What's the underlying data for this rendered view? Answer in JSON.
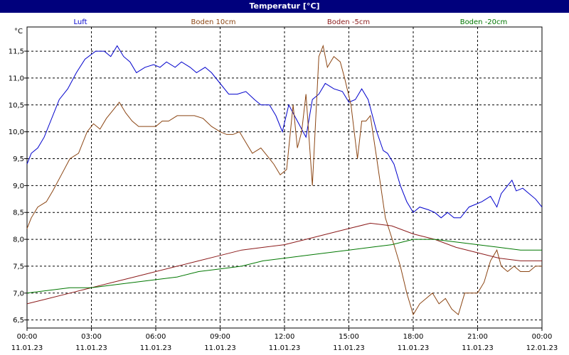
{
  "window": {
    "title": "Temperatur [°C]"
  },
  "chart_data": {
    "type": "line",
    "title": "Temperatur [°C]",
    "ylabel": "°C",
    "xlabel": "",
    "ylim": [
      6.35,
      11.95
    ],
    "xlim": [
      0,
      24
    ],
    "grid": true,
    "legend_placement": "top",
    "yticks": [
      6.5,
      7.0,
      7.5,
      8.0,
      8.5,
      9.0,
      9.5,
      10.0,
      10.5,
      11.0,
      11.5
    ],
    "ytick_labels": [
      "6,5",
      "7,0",
      "7,5",
      "8,0",
      "8,5",
      "9,0",
      "9,5",
      "10,0",
      "10,5",
      "11,0",
      "11,5"
    ],
    "xticks": [
      {
        "x": 0,
        "time": "00:00",
        "date": "11.01.23"
      },
      {
        "x": 3,
        "time": "03:00",
        "date": "11.01.23"
      },
      {
        "x": 6,
        "time": "06:00",
        "date": "11.01.23"
      },
      {
        "x": 9,
        "time": "09:00",
        "date": "11.01.23"
      },
      {
        "x": 12,
        "time": "12:00",
        "date": "11.01.23"
      },
      {
        "x": 15,
        "time": "15:00",
        "date": "11.01.23"
      },
      {
        "x": 18,
        "time": "18:00",
        "date": "11.01.23"
      },
      {
        "x": 21,
        "time": "21:00",
        "date": "11.01.23"
      },
      {
        "x": 24,
        "time": "00:00",
        "date": "12.01.23"
      }
    ],
    "series": [
      {
        "name": "Luft",
        "color": "#0000cc",
        "points": [
          [
            0,
            9.4
          ],
          [
            0.2,
            9.6
          ],
          [
            0.5,
            9.7
          ],
          [
            0.8,
            9.9
          ],
          [
            1.1,
            10.2
          ],
          [
            1.5,
            10.6
          ],
          [
            1.9,
            10.8
          ],
          [
            2.3,
            11.1
          ],
          [
            2.7,
            11.35
          ],
          [
            3.2,
            11.5
          ],
          [
            3.6,
            11.5
          ],
          [
            3.9,
            11.4
          ],
          [
            4.2,
            11.6
          ],
          [
            4.5,
            11.4
          ],
          [
            4.8,
            11.3
          ],
          [
            5.1,
            11.1
          ],
          [
            5.5,
            11.2
          ],
          [
            5.9,
            11.25
          ],
          [
            6.2,
            11.2
          ],
          [
            6.5,
            11.3
          ],
          [
            6.9,
            11.2
          ],
          [
            7.2,
            11.3
          ],
          [
            7.6,
            11.2
          ],
          [
            7.9,
            11.1
          ],
          [
            8.3,
            11.2
          ],
          [
            8.6,
            11.1
          ],
          [
            9.0,
            10.9
          ],
          [
            9.4,
            10.7
          ],
          [
            9.8,
            10.7
          ],
          [
            10.2,
            10.75
          ],
          [
            10.6,
            10.6
          ],
          [
            10.9,
            10.5
          ],
          [
            11.3,
            10.5
          ],
          [
            11.6,
            10.3
          ],
          [
            11.9,
            10.0
          ],
          [
            12.2,
            10.5
          ],
          [
            12.6,
            10.2
          ],
          [
            13.0,
            9.9
          ],
          [
            13.3,
            10.6
          ],
          [
            13.6,
            10.7
          ],
          [
            13.9,
            10.9
          ],
          [
            14.3,
            10.8
          ],
          [
            14.7,
            10.75
          ],
          [
            15.0,
            10.55
          ],
          [
            15.3,
            10.6
          ],
          [
            15.6,
            10.8
          ],
          [
            15.9,
            10.6
          ],
          [
            16.3,
            10.0
          ],
          [
            16.6,
            9.65
          ],
          [
            16.8,
            9.6
          ],
          [
            17.1,
            9.4
          ],
          [
            17.4,
            9.0
          ],
          [
            17.7,
            8.7
          ],
          [
            18.0,
            8.5
          ],
          [
            18.3,
            8.6
          ],
          [
            18.7,
            8.55
          ],
          [
            19.0,
            8.5
          ],
          [
            19.3,
            8.4
          ],
          [
            19.6,
            8.5
          ],
          [
            19.9,
            8.4
          ],
          [
            20.2,
            8.4
          ],
          [
            20.6,
            8.6
          ],
          [
            20.9,
            8.65
          ],
          [
            21.2,
            8.7
          ],
          [
            21.6,
            8.8
          ],
          [
            21.9,
            8.6
          ],
          [
            22.1,
            8.85
          ],
          [
            22.4,
            9.0
          ],
          [
            22.6,
            9.1
          ],
          [
            22.8,
            8.9
          ],
          [
            23.1,
            8.95
          ],
          [
            23.4,
            8.85
          ],
          [
            23.7,
            8.75
          ],
          [
            23.9,
            8.65
          ],
          [
            24.0,
            8.6
          ]
        ]
      },
      {
        "name": "Boden 10cm",
        "color": "#8b4513",
        "points": [
          [
            0,
            8.2
          ],
          [
            0.2,
            8.4
          ],
          [
            0.5,
            8.6
          ],
          [
            0.9,
            8.7
          ],
          [
            1.2,
            8.9
          ],
          [
            1.6,
            9.2
          ],
          [
            2.0,
            9.5
          ],
          [
            2.4,
            9.6
          ],
          [
            2.8,
            10.0
          ],
          [
            3.1,
            10.15
          ],
          [
            3.4,
            10.05
          ],
          [
            3.7,
            10.25
          ],
          [
            4.0,
            10.4
          ],
          [
            4.3,
            10.55
          ],
          [
            4.6,
            10.35
          ],
          [
            4.9,
            10.2
          ],
          [
            5.2,
            10.1
          ],
          [
            5.6,
            10.1
          ],
          [
            6.0,
            10.1
          ],
          [
            6.3,
            10.2
          ],
          [
            6.6,
            10.2
          ],
          [
            7.0,
            10.3
          ],
          [
            7.4,
            10.3
          ],
          [
            7.8,
            10.3
          ],
          [
            8.2,
            10.25
          ],
          [
            8.6,
            10.1
          ],
          [
            9.0,
            10.0
          ],
          [
            9.3,
            9.95
          ],
          [
            9.6,
            9.95
          ],
          [
            9.9,
            10.0
          ],
          [
            10.2,
            9.8
          ],
          [
            10.5,
            9.6
          ],
          [
            10.9,
            9.7
          ],
          [
            11.2,
            9.55
          ],
          [
            11.5,
            9.4
          ],
          [
            11.8,
            9.2
          ],
          [
            12.1,
            9.3
          ],
          [
            12.4,
            10.5
          ],
          [
            12.6,
            9.7
          ],
          [
            12.8,
            10.0
          ],
          [
            13.0,
            10.7
          ],
          [
            13.3,
            9.0
          ],
          [
            13.6,
            11.4
          ],
          [
            13.8,
            11.6
          ],
          [
            14.0,
            11.2
          ],
          [
            14.3,
            11.4
          ],
          [
            14.6,
            11.3
          ],
          [
            14.8,
            11.0
          ],
          [
            15.1,
            10.5
          ],
          [
            15.4,
            9.5
          ],
          [
            15.6,
            10.2
          ],
          [
            15.8,
            10.2
          ],
          [
            16.0,
            10.3
          ],
          [
            16.3,
            9.5
          ],
          [
            16.7,
            8.4
          ],
          [
            17.1,
            7.9
          ],
          [
            17.4,
            7.5
          ],
          [
            17.7,
            7.0
          ],
          [
            18.0,
            6.6
          ],
          [
            18.3,
            6.8
          ],
          [
            18.6,
            6.9
          ],
          [
            18.9,
            7.0
          ],
          [
            19.2,
            6.8
          ],
          [
            19.5,
            6.9
          ],
          [
            19.8,
            6.7
          ],
          [
            20.1,
            6.6
          ],
          [
            20.4,
            7.0
          ],
          [
            20.7,
            7.0
          ],
          [
            21.0,
            7.0
          ],
          [
            21.3,
            7.2
          ],
          [
            21.6,
            7.6
          ],
          [
            21.9,
            7.8
          ],
          [
            22.1,
            7.5
          ],
          [
            22.4,
            7.4
          ],
          [
            22.7,
            7.5
          ],
          [
            23.0,
            7.4
          ],
          [
            23.4,
            7.4
          ],
          [
            23.7,
            7.5
          ],
          [
            24.0,
            7.5
          ]
        ]
      },
      {
        "name": "Boden -5cm",
        "color": "#8b1a1a",
        "points": [
          [
            0,
            6.8
          ],
          [
            1,
            6.9
          ],
          [
            2,
            7.0
          ],
          [
            3,
            7.1
          ],
          [
            4,
            7.2
          ],
          [
            5,
            7.3
          ],
          [
            6,
            7.4
          ],
          [
            7,
            7.5
          ],
          [
            8,
            7.6
          ],
          [
            9,
            7.7
          ],
          [
            10,
            7.8
          ],
          [
            11,
            7.85
          ],
          [
            12,
            7.9
          ],
          [
            13,
            8.0
          ],
          [
            14,
            8.1
          ],
          [
            15,
            8.2
          ],
          [
            16,
            8.3
          ],
          [
            17,
            8.25
          ],
          [
            18,
            8.1
          ],
          [
            19,
            8.0
          ],
          [
            20,
            7.85
          ],
          [
            21,
            7.75
          ],
          [
            22,
            7.65
          ],
          [
            23,
            7.6
          ],
          [
            24,
            7.6
          ]
        ]
      },
      {
        "name": "Boden -20cm",
        "color": "#007700",
        "points": [
          [
            0,
            7.0
          ],
          [
            1,
            7.05
          ],
          [
            2,
            7.1
          ],
          [
            3,
            7.1
          ],
          [
            4,
            7.15
          ],
          [
            5,
            7.2
          ],
          [
            6,
            7.25
          ],
          [
            7,
            7.3
          ],
          [
            8,
            7.4
          ],
          [
            9,
            7.45
          ],
          [
            10,
            7.5
          ],
          [
            11,
            7.6
          ],
          [
            12,
            7.65
          ],
          [
            13,
            7.7
          ],
          [
            14,
            7.75
          ],
          [
            15,
            7.8
          ],
          [
            16,
            7.85
          ],
          [
            17,
            7.9
          ],
          [
            18,
            8.0
          ],
          [
            19,
            8.0
          ],
          [
            20,
            7.95
          ],
          [
            21,
            7.9
          ],
          [
            22,
            7.85
          ],
          [
            23,
            7.8
          ],
          [
            24,
            7.8
          ]
        ]
      }
    ]
  }
}
